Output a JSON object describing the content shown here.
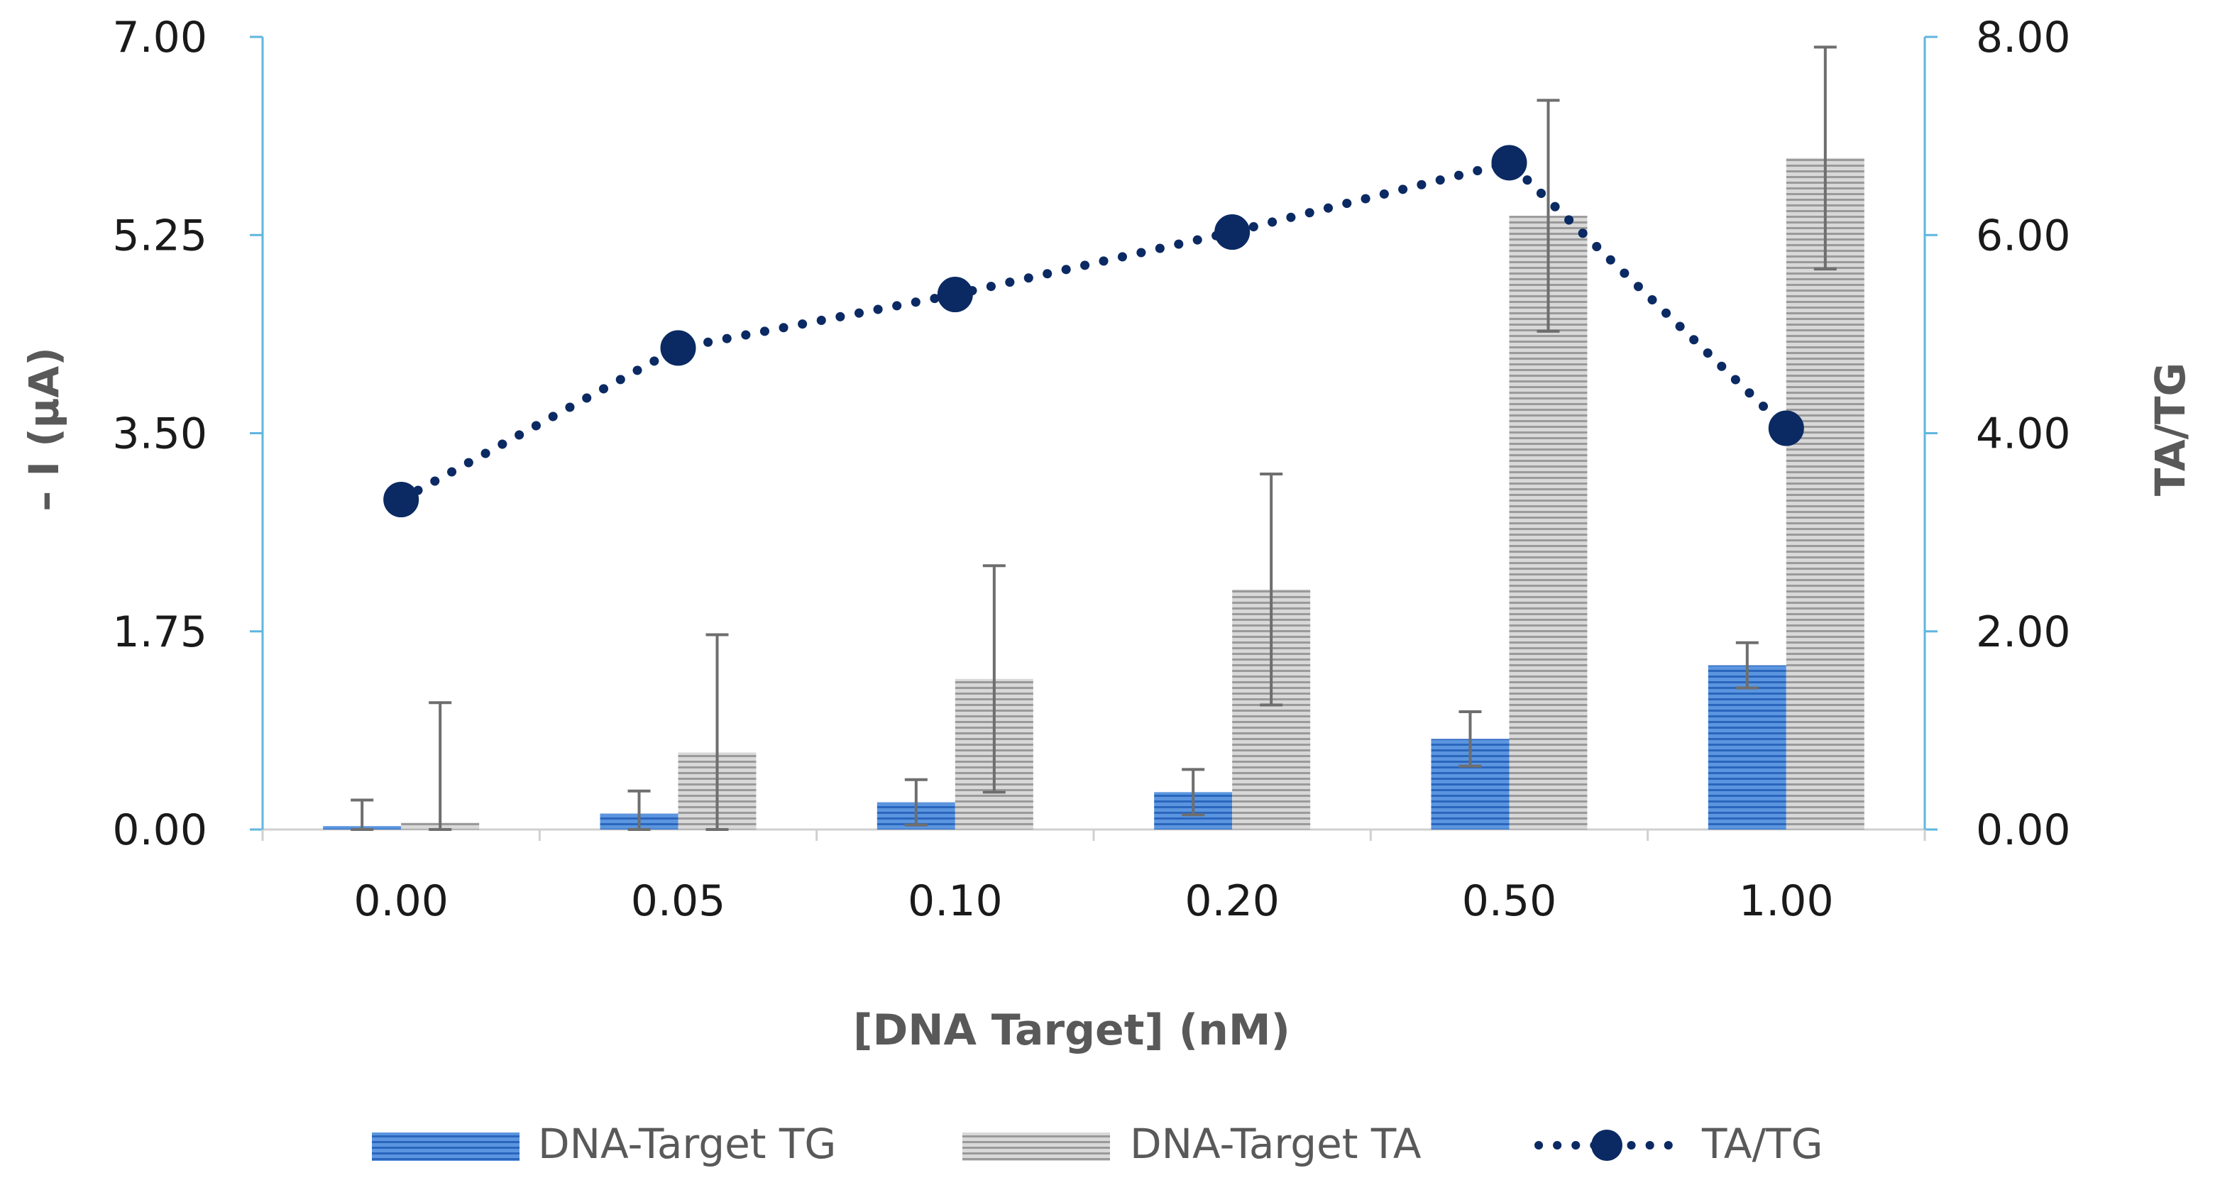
{
  "chart_data": {
    "type": "bar+line",
    "title": "",
    "xlabel": "[DNA Target] (nM)",
    "ylabel": "– I (µA)",
    "y2label": "TA/TG",
    "ylim": [
      0,
      7
    ],
    "y2lim": [
      0,
      8
    ],
    "yticks": [
      "0.00",
      "1.75",
      "3.50",
      "5.25",
      "7.00"
    ],
    "yticks_values": [
      0,
      1.75,
      3.5,
      5.25,
      7.0
    ],
    "y2ticks": [
      "0.00",
      "2.00",
      "4.00",
      "6.00",
      "8.00"
    ],
    "y2ticks_values": [
      0,
      2,
      4,
      6,
      8
    ],
    "categories": [
      "0.00",
      "0.05",
      "0.10",
      "0.20",
      "0.50",
      "1.00"
    ],
    "series": [
      {
        "name": "DNA-Target TG",
        "kind": "bar",
        "axis": "left",
        "color": "#3a78c9",
        "values": [
          0.03,
          0.14,
          0.24,
          0.33,
          0.8,
          1.45
        ],
        "errors": [
          0.23,
          0.2,
          0.2,
          0.2,
          0.24,
          0.2
        ]
      },
      {
        "name": "DNA-Target TA",
        "kind": "bar",
        "axis": "left",
        "color": "#a6a6a6",
        "values": [
          0.06,
          0.68,
          1.33,
          2.12,
          5.42,
          5.93
        ],
        "errors": [
          1.06,
          1.04,
          1.0,
          1.02,
          1.02,
          0.98
        ]
      },
      {
        "name": "TA/TG",
        "kind": "line",
        "axis": "right",
        "color": "#0b2a63",
        "values": [
          3.33,
          4.86,
          5.4,
          6.03,
          6.73,
          4.05
        ]
      }
    ],
    "legend": [
      "DNA-Target TG",
      "DNA-Target TA",
      "TA/TG"
    ],
    "legend_position": "bottom",
    "grid": false
  }
}
